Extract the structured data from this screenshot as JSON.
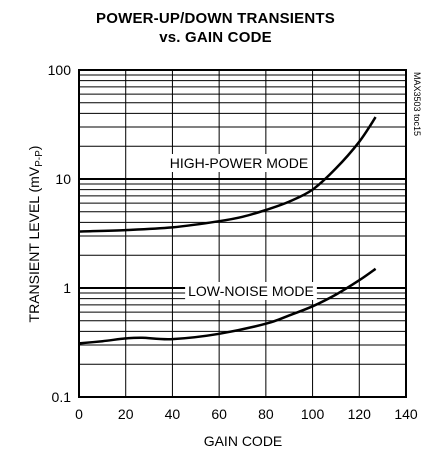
{
  "chart_data": {
    "type": "line",
    "title_line1": "POWER-UP/DOWN TRANSIENTS",
    "title_line2": "vs. GAIN CODE",
    "xlabel": "GAIN CODE",
    "ylabel_main": "TRANSIENT LEVEL (mV",
    "ylabel_sub": "P-P",
    "ylabel_end": ")",
    "xlim": [
      0,
      140
    ],
    "ylim": [
      0.1,
      100
    ],
    "yscale": "log",
    "grid": true,
    "xticks": [
      0,
      20,
      40,
      60,
      80,
      100,
      120,
      140
    ],
    "xtick_labels": [
      "0",
      "20",
      "40",
      "60",
      "80",
      "100",
      "120",
      "140"
    ],
    "yticks": [
      0.1,
      1,
      10,
      100
    ],
    "ytick_labels": [
      "0.1",
      "1",
      "10",
      "100"
    ],
    "doc_code": "MAX3503 toc15",
    "series": [
      {
        "name": "HIGH-POWER MODE",
        "x": [
          0,
          20,
          40,
          60,
          70,
          80,
          90,
          100,
          110,
          120,
          127
        ],
        "y": [
          3.3,
          3.4,
          3.6,
          4.1,
          4.5,
          5.2,
          6.2,
          8.0,
          12.5,
          22.0,
          37.0
        ]
      },
      {
        "name": "LOW-NOISE MODE",
        "x": [
          0,
          10,
          20,
          27,
          40,
          60,
          80,
          90,
          100,
          110,
          120,
          127
        ],
        "y": [
          0.31,
          0.325,
          0.345,
          0.35,
          0.34,
          0.38,
          0.47,
          0.56,
          0.68,
          0.87,
          1.18,
          1.5
        ]
      }
    ]
  }
}
